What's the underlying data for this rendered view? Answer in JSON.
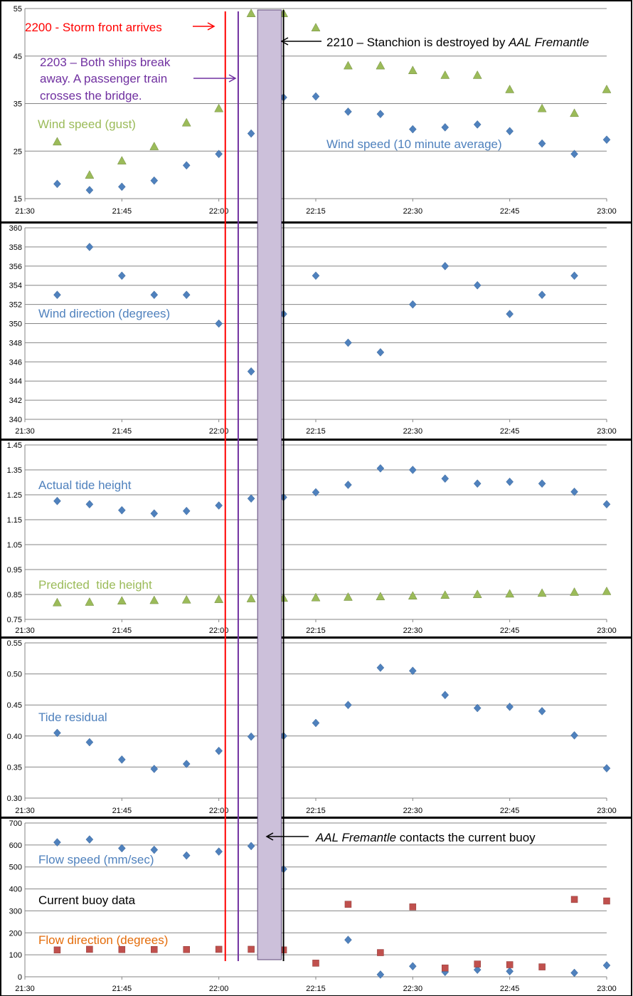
{
  "chart_data": [
    {
      "type": "scatter",
      "x_ticks": [
        "21:30",
        "21:45",
        "22:00",
        "22:15",
        "22:30",
        "22:45",
        "23:00"
      ],
      "ylim": [
        15,
        55
      ],
      "y_ticks": [
        "15",
        "25",
        "35",
        "45",
        "55"
      ],
      "grid": "horizontal",
      "series": [
        {
          "name": "Wind speed (gust)",
          "marker": "triangle",
          "color": "#9BBB59",
          "x": [
            "21:35",
            "21:40",
            "21:45",
            "21:50",
            "21:55",
            "22:00",
            "22:05",
            "22:10",
            "22:15",
            "22:20",
            "22:25",
            "22:30",
            "22:35",
            "22:40",
            "22:45",
            "22:50",
            "22:55",
            "23:00"
          ],
          "y": [
            27,
            20,
            23,
            26,
            31,
            34,
            54,
            54,
            51,
            43,
            43,
            42,
            41,
            41,
            38,
            34,
            33,
            38
          ]
        },
        {
          "name": "Wind speed (10 minute average)",
          "marker": "diamond",
          "color": "#4F81BD",
          "x": [
            "21:35",
            "21:40",
            "21:45",
            "21:50",
            "21:55",
            "22:00",
            "22:05",
            "22:10",
            "22:15",
            "22:20",
            "22:25",
            "22:30",
            "22:35",
            "22:40",
            "22:45",
            "22:50",
            "22:55",
            "23:00"
          ],
          "y": [
            18.1,
            16.8,
            17.5,
            18.8,
            22,
            24.4,
            28.7,
            36.3,
            36.5,
            33.3,
            32.8,
            29.6,
            30,
            30.6,
            29.2,
            26.6,
            24.4,
            27.4
          ]
        }
      ]
    },
    {
      "type": "scatter",
      "x_ticks": [
        "21:30",
        "21:45",
        "22:00",
        "22:15",
        "22:30",
        "22:45",
        "23:00"
      ],
      "ylim": [
        340,
        360
      ],
      "y_ticks": [
        "340",
        "342",
        "344",
        "346",
        "348",
        "350",
        "352",
        "354",
        "356",
        "358",
        "360"
      ],
      "grid": "horizontal",
      "series": [
        {
          "name": "Wind direction (degrees)",
          "marker": "diamond",
          "color": "#4F81BD",
          "x": [
            "21:35",
            "21:40",
            "21:45",
            "21:50",
            "21:55",
            "22:00",
            "22:05",
            "22:10",
            "22:15",
            "22:20",
            "22:25",
            "22:30",
            "22:35",
            "22:40",
            "22:45",
            "22:50",
            "22:55"
          ],
          "y": [
            353,
            358,
            355,
            353,
            353,
            350,
            345,
            351,
            355,
            348,
            347,
            352,
            356,
            354,
            351,
            353,
            355
          ]
        }
      ]
    },
    {
      "type": "scatter",
      "x_ticks": [
        "21:30",
        "21:45",
        "22:00",
        "22:15",
        "22:30",
        "22:45",
        "23:00"
      ],
      "ylim": [
        0.75,
        1.45
      ],
      "y_ticks": [
        "0.75",
        "0.85",
        "0.95",
        "1.05",
        "1.15",
        "1.25",
        "1.35",
        "1.45"
      ],
      "grid": "horizontal",
      "series": [
        {
          "name": "Actual tide height",
          "marker": "diamond",
          "color": "#4F81BD",
          "x": [
            "21:35",
            "21:40",
            "21:45",
            "21:50",
            "21:55",
            "22:00",
            "22:05",
            "22:10",
            "22:15",
            "22:20",
            "22:25",
            "22:30",
            "22:35",
            "22:40",
            "22:45",
            "22:50",
            "22:55",
            "23:00"
          ],
          "y": [
            1.225,
            1.212,
            1.188,
            1.175,
            1.185,
            1.207,
            1.235,
            1.24,
            1.26,
            1.29,
            1.356,
            1.35,
            1.315,
            1.295,
            1.302,
            1.295,
            1.262,
            1.212
          ]
        },
        {
          "name": "Predicted  tide height",
          "marker": "triangle",
          "color": "#9BBB59",
          "x": [
            "21:35",
            "21:40",
            "21:45",
            "21:50",
            "21:55",
            "22:00",
            "22:05",
            "22:10",
            "22:15",
            "22:20",
            "22:25",
            "22:30",
            "22:35",
            "22:40",
            "22:45",
            "22:50",
            "22:55",
            "23:00"
          ],
          "y": [
            0.818,
            0.82,
            0.825,
            0.827,
            0.829,
            0.831,
            0.834,
            0.836,
            0.838,
            0.84,
            0.842,
            0.845,
            0.848,
            0.851,
            0.853,
            0.856,
            0.86,
            0.863
          ]
        }
      ]
    },
    {
      "type": "scatter",
      "x_ticks": [
        "21:30",
        "21:45",
        "22:00",
        "22:15",
        "22:30",
        "22:45",
        "23:00"
      ],
      "ylim": [
        0.3,
        0.55
      ],
      "y_ticks": [
        "0.30",
        "0.35",
        "0.40",
        "0.45",
        "0.50",
        "0.55"
      ],
      "grid": "horizontal",
      "series": [
        {
          "name": "Tide residual",
          "marker": "diamond",
          "color": "#4F81BD",
          "x": [
            "21:35",
            "21:40",
            "21:45",
            "21:50",
            "21:55",
            "22:00",
            "22:05",
            "22:10",
            "22:15",
            "22:20",
            "22:25",
            "22:30",
            "22:35",
            "22:40",
            "22:45",
            "22:50",
            "22:55",
            "23:00"
          ],
          "y": [
            0.405,
            0.39,
            0.362,
            0.347,
            0.355,
            0.376,
            0.399,
            0.4,
            0.421,
            0.45,
            0.51,
            0.505,
            0.466,
            0.445,
            0.447,
            0.44,
            0.401,
            0.348
          ]
        }
      ]
    },
    {
      "type": "scatter",
      "x_ticks": [
        "21:30",
        "21:45",
        "22:00",
        "22:15",
        "22:30",
        "22:45",
        "23:00"
      ],
      "ylim": [
        0,
        700
      ],
      "y_ticks": [
        "0",
        "100",
        "200",
        "300",
        "400",
        "500",
        "600",
        "700"
      ],
      "grid": "horizontal",
      "series": [
        {
          "name": "Flow speed (mm/sec)",
          "marker": "diamond",
          "color": "#4F81BD",
          "x": [
            "21:35",
            "21:40",
            "21:45",
            "21:50",
            "21:55",
            "22:00",
            "22:05",
            "22:10",
            "22:20",
            "22:25",
            "22:30",
            "22:35",
            "22:40",
            "22:45",
            "22:55",
            "23:00"
          ],
          "y": [
            612,
            625,
            585,
            578,
            552,
            570,
            595,
            490,
            168,
            10,
            48,
            22,
            32,
            25,
            18,
            52
          ]
        },
        {
          "name": "Flow direction (degrees)",
          "marker": "square",
          "color": "#C0504D",
          "x": [
            "21:35",
            "21:40",
            "21:45",
            "21:50",
            "21:55",
            "22:00",
            "22:05",
            "22:10",
            "22:15",
            "22:20",
            "22:25",
            "22:30",
            "22:35",
            "22:40",
            "22:45",
            "22:50",
            "22:55",
            "23:00"
          ],
          "y": [
            122,
            125,
            124,
            124,
            124,
            125,
            125,
            122,
            62,
            330,
            110,
            318,
            40,
            58,
            55,
            45,
            352,
            345
          ]
        }
      ]
    }
  ],
  "panel_labels": [
    "Wind speed (gust)",
    "Wind speed (10 minute average)",
    "Wind direction (degrees)",
    "Actual tide height",
    "Predicted  tide height",
    "Tide residual",
    "Flow speed (mm/sec)",
    "Current buoy data",
    "Flow direction (degrees)"
  ],
  "annotations": {
    "storm": "2200 - Storm front arrives",
    "break_line1": "2203 – Both ships break",
    "break_line2": "away. A passenger train",
    "break_line3": "crosses the bridge.",
    "stanchion_prefix": "2210 – Stanchion is destroyed by ",
    "stanchion_ship": "AAL Fremantle",
    "buoy_ship": "AAL Fremantle",
    "buoy_suffix": " contacts the current buoy"
  },
  "event_times": {
    "storm": "22:01",
    "break": "22:03",
    "highlight_start": "22:06",
    "highlight_end": "22:10",
    "stanchion": "22:10"
  },
  "colors": {
    "storm_line": "#FF0000",
    "break_line": "#7030A0",
    "stanchion_line": "#000000",
    "highlight_fill": "#CCC0DA",
    "highlight_stroke": "#5F497A",
    "blue_series": "#4F81BD",
    "green_series": "#9BBB59",
    "red_series": "#C0504D",
    "gridline": "#868686"
  }
}
